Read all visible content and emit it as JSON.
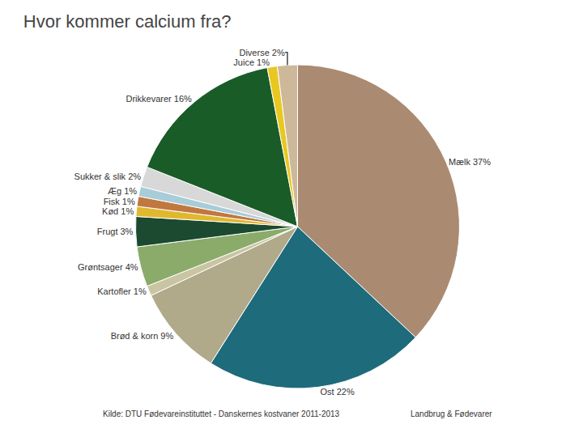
{
  "chart_data": {
    "type": "pie",
    "title": "Hvor kommer calcium fra?",
    "categories": [
      "Mælk 37%",
      "Ost 22%",
      "Brød & korn 9%",
      "Kartofler 1%",
      "Grøntsager 4%",
      "Frugt 3%",
      "Kød 1%",
      "Fisk 1%",
      "Æg 1%",
      "Sukker & slik 2%",
      "Drikkevarer 16%",
      "Juice 1%",
      "Diverse 2%"
    ],
    "values": [
      37,
      22,
      9,
      1,
      4,
      3,
      1,
      1,
      1,
      2,
      16,
      1,
      2
    ],
    "colors": [
      "#aa8b72",
      "#1e6b7c",
      "#b0a98a",
      "#c9c5a2",
      "#8aab6a",
      "#1b4a30",
      "#e0b830",
      "#c07840",
      "#a8ccd8",
      "#d8d8d8",
      "#1a5c28",
      "#e8c820",
      "#cdb99a"
    ],
    "annotations": [
      "Kilde: DTU Fødevareinstituttet - Danskernes kostvaner 2011-2013",
      "Landbrug & Fødevarer"
    ]
  }
}
